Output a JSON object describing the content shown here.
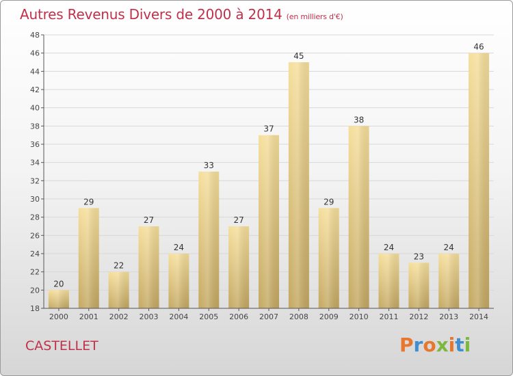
{
  "header": {
    "title": "Autres Revenus Divers de 2000 à 2014",
    "subtitle": "(en milliers d'€)"
  },
  "footer": {
    "city": "CASTELLET",
    "logo_letters": [
      {
        "char": "P",
        "color": "#e8772e"
      },
      {
        "char": "r",
        "color": "#3f8fd0"
      },
      {
        "char": "o",
        "color": "#e8772e"
      },
      {
        "char": "x",
        "color": "#7cb83e"
      },
      {
        "char": "i",
        "color": "#e8772e"
      },
      {
        "char": "t",
        "color": "#3f8fd0"
      },
      {
        "char": "i",
        "color": "#7cb83e"
      }
    ]
  },
  "chart_data": {
    "type": "bar",
    "title": "Autres Revenus Divers de 2000 à 2014",
    "subtitle": "(en milliers d'€)",
    "categories": [
      "2000",
      "2001",
      "2002",
      "2003",
      "2004",
      "2005",
      "2006",
      "2007",
      "2008",
      "2009",
      "2010",
      "2011",
      "2012",
      "2013",
      "2014"
    ],
    "values": [
      20,
      29,
      22,
      27,
      24,
      33,
      27,
      37,
      45,
      29,
      38,
      24,
      23,
      24,
      46
    ],
    "ylim": [
      18,
      48
    ],
    "yticks": [
      18,
      20,
      22,
      24,
      26,
      28,
      30,
      32,
      34,
      36,
      38,
      40,
      42,
      44,
      46,
      48
    ],
    "grid": true,
    "data_labels": true,
    "colors": {
      "bar_light": "#f6df9c",
      "bar_dark": "#c4a862",
      "grid": "#d8d8d8",
      "axis": "#555555",
      "title": "#c0304a"
    }
  }
}
